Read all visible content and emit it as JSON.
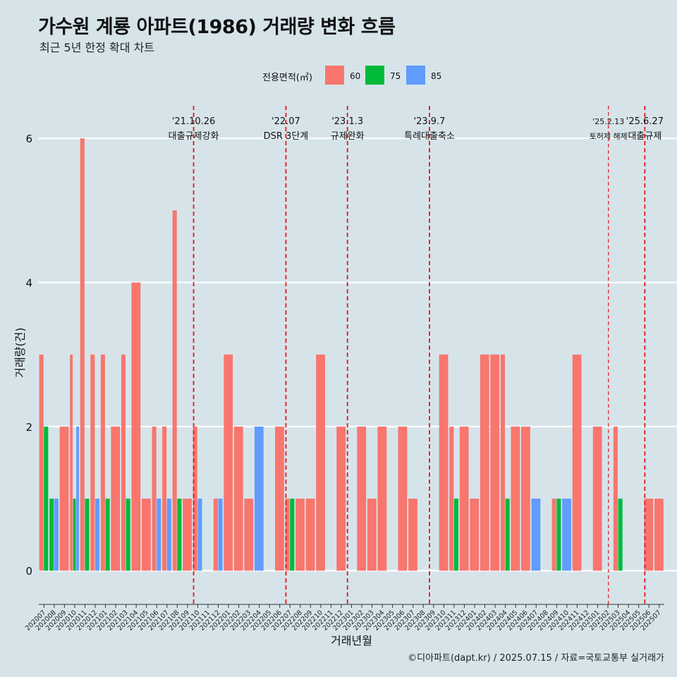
{
  "title": "가수원 계룡 아파트(1986) 거래량 변화 흐름",
  "subtitle": "최근 5년 한정 확대 차트",
  "caption": "©디아파트(dapt.kr) / 2025.07.15 / 자료=국토교통부 실거래가",
  "colors": {
    "background": "#d6e4ea",
    "series_60": "#f8766d",
    "series_75": "#00ba38",
    "series_85": "#619cff",
    "event_line": "#e8141a"
  },
  "chart_data": {
    "type": "bar",
    "xlabel": "거래년월",
    "ylabel": "거래량(건)",
    "ylim": [
      -0.35,
      6.55
    ],
    "y_ticks": [
      0,
      2,
      4,
      6
    ],
    "grid": true,
    "legend": {
      "title": "전용면적(㎡)",
      "position": "top",
      "entries": [
        "60",
        "75",
        "85"
      ]
    },
    "categories": [
      "202007",
      "202008",
      "202009",
      "202010",
      "202011",
      "202012",
      "202101",
      "202102",
      "202103",
      "202104",
      "202105",
      "202106",
      "202107",
      "202108",
      "202109",
      "202110",
      "202111",
      "202112",
      "202201",
      "202202",
      "202203",
      "202204",
      "202205",
      "202206",
      "202207",
      "202208",
      "202209",
      "202210",
      "202211",
      "202212",
      "202301",
      "202302",
      "202303",
      "202304",
      "202305",
      "202306",
      "202307",
      "202308",
      "202309",
      "202310",
      "202311",
      "202312",
      "202401",
      "202402",
      "202403",
      "202404",
      "202405",
      "202406",
      "202407",
      "202408",
      "202409",
      "202410",
      "202411",
      "202412",
      "202501",
      "202502",
      "202503",
      "202504",
      "202505",
      "202506",
      "202507"
    ],
    "series": [
      {
        "name": "60",
        "values": [
          3,
          0,
          2,
          3,
          6,
          3,
          3,
          2,
          3,
          4,
          1,
          2,
          2,
          5,
          1,
          2,
          0,
          1,
          3,
          2,
          1,
          0,
          0,
          2,
          1,
          1,
          1,
          3,
          0,
          2,
          0,
          2,
          1,
          2,
          0,
          2,
          1,
          0,
          0,
          3,
          2,
          2,
          1,
          3,
          3,
          3,
          2,
          2,
          0,
          0,
          1,
          0,
          3,
          0,
          2,
          0,
          2,
          0,
          0,
          1,
          1
        ]
      },
      {
        "name": "75",
        "values": [
          2,
          1,
          0,
          1,
          1,
          0,
          1,
          0,
          1,
          0,
          0,
          0,
          0,
          1,
          0,
          0,
          0,
          0,
          0,
          0,
          0,
          0,
          0,
          0,
          1,
          0,
          0,
          0,
          0,
          0,
          0,
          0,
          0,
          0,
          0,
          0,
          0,
          0,
          0,
          0,
          1,
          0,
          0,
          0,
          0,
          1,
          0,
          0,
          0,
          0,
          1,
          0,
          0,
          0,
          0,
          0,
          1,
          0,
          0,
          0,
          0
        ]
      },
      {
        "name": "85",
        "values": [
          0,
          1,
          0,
          2,
          0,
          1,
          0,
          0,
          0,
          0,
          0,
          1,
          1,
          0,
          0,
          1,
          0,
          1,
          0,
          0,
          0,
          2,
          0,
          0,
          0,
          0,
          0,
          0,
          0,
          0,
          0,
          0,
          0,
          0,
          0,
          0,
          0,
          0,
          0,
          0,
          0,
          0,
          0,
          0,
          0,
          0,
          0,
          0,
          1,
          0,
          0,
          1,
          0,
          0,
          0,
          0,
          0,
          0,
          0,
          0,
          0
        ]
      }
    ],
    "events": [
      {
        "date": "'21.10.26",
        "label": "대출규제강화",
        "x_index": 15,
        "style": "major"
      },
      {
        "date": "'22.07",
        "label": "DSR 3단계",
        "x_index": 24,
        "style": "major"
      },
      {
        "date": "'23.1.3",
        "label": "규제완화",
        "x_index": 30,
        "style": "major"
      },
      {
        "date": "'23.9.7",
        "label": "특례대출축소",
        "x_index": 38,
        "style": "major"
      },
      {
        "date": "'25.2.13",
        "label": "토허제 해제",
        "x_index": 55,
        "style": "minor"
      },
      {
        "date": "'25.6.27",
        "label": "대출규제",
        "x_index": 59,
        "style": "major"
      }
    ]
  }
}
